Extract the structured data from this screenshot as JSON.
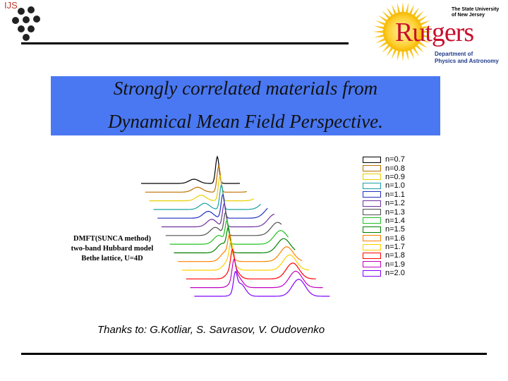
{
  "header": {
    "ijs_logo_text": "IJS",
    "rutgers": {
      "university_line1": "The State University",
      "university_line2": "of New Jersey",
      "wordmark": "Rutgers",
      "dept_line1": "Department of",
      "dept_line2": "Physics and Astronomy"
    }
  },
  "title": {
    "line1": "Strongly correlated materials from",
    "line2": "Dynamical Mean Field Perspective."
  },
  "model_note": {
    "line1": "DMFT(SUNCA method)",
    "line2": "two-band Hubbard model",
    "line3": "Bethe lattice, U=4D"
  },
  "legend": [
    {
      "label": "n=0.7",
      "color": "#000000"
    },
    {
      "label": "n=0.8",
      "color": "#c07000"
    },
    {
      "label": "n=0.9",
      "color": "#e8d000"
    },
    {
      "label": "n=1.0",
      "color": "#1aa0a0"
    },
    {
      "label": "n=1.1",
      "color": "#2030c0"
    },
    {
      "label": "n=1.2",
      "color": "#7030a0"
    },
    {
      "label": "n=1.3",
      "color": "#505050"
    },
    {
      "label": "n=1.4",
      "color": "#20c020"
    },
    {
      "label": "n=1.5",
      "color": "#008000"
    },
    {
      "label": "n=1.6",
      "color": "#ff8000"
    },
    {
      "label": "n=1.7",
      "color": "#ffd000"
    },
    {
      "label": "n=1.8",
      "color": "#ff0000"
    },
    {
      "label": "n=1.9",
      "color": "#c000c0"
    },
    {
      "label": "n=2.0",
      "color": "#8000ff"
    }
  ],
  "thanks": "Thanks to: G.Kotliar, S. Savrasov, V. Oudovenko"
}
